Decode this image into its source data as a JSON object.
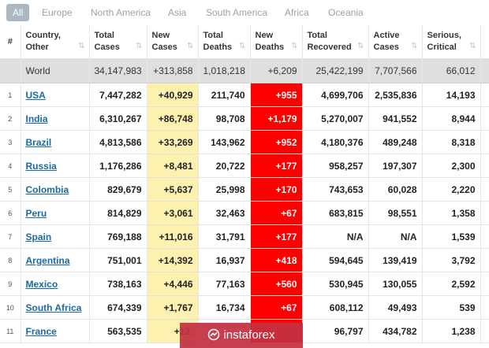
{
  "tabs": [
    "All",
    "Europe",
    "North America",
    "Asia",
    "South America",
    "Africa",
    "Oceania"
  ],
  "header": {
    "rank": "#",
    "country_1": "Country,",
    "country_2": "Other",
    "total_cases_1": "Total",
    "total_cases_2": "Cases",
    "new_cases_1": "New",
    "new_cases_2": "Cases",
    "total_deaths_1": "Total",
    "total_deaths_2": "Deaths",
    "new_deaths_1": "New",
    "new_deaths_2": "Deaths",
    "total_recovered_1": "Total",
    "total_recovered_2": "Recovered",
    "active_cases_1": "Active",
    "active_cases_2": "Cases",
    "serious_1": "Serious,",
    "serious_2": "Critical"
  },
  "world": {
    "country": "World",
    "total_cases": "34,147,983",
    "new_cases": "+313,858",
    "total_deaths": "1,018,218",
    "new_deaths": "+6,209",
    "total_recovered": "25,422,199",
    "active_cases": "7,707,566",
    "serious": "66,012"
  },
  "rows": [
    {
      "rank": "1",
      "country": "USA",
      "total_cases": "7,447,282",
      "new_cases": "+40,929",
      "total_deaths": "211,740",
      "new_deaths": "+955",
      "total_recovered": "4,699,706",
      "active_cases": "2,535,836",
      "serious": "14,193"
    },
    {
      "rank": "2",
      "country": "India",
      "total_cases": "6,310,267",
      "new_cases": "+86,748",
      "total_deaths": "98,708",
      "new_deaths": "+1,179",
      "total_recovered": "5,270,007",
      "active_cases": "941,552",
      "serious": "8,944"
    },
    {
      "rank": "3",
      "country": "Brazil",
      "total_cases": "4,813,586",
      "new_cases": "+33,269",
      "total_deaths": "143,962",
      "new_deaths": "+952",
      "total_recovered": "4,180,376",
      "active_cases": "489,248",
      "serious": "8,318"
    },
    {
      "rank": "4",
      "country": "Russia",
      "total_cases": "1,176,286",
      "new_cases": "+8,481",
      "total_deaths": "20,722",
      "new_deaths": "+177",
      "total_recovered": "958,257",
      "active_cases": "197,307",
      "serious": "2,300"
    },
    {
      "rank": "5",
      "country": "Colombia",
      "total_cases": "829,679",
      "new_cases": "+5,637",
      "total_deaths": "25,998",
      "new_deaths": "+170",
      "total_recovered": "743,653",
      "active_cases": "60,028",
      "serious": "2,220"
    },
    {
      "rank": "6",
      "country": "Peru",
      "total_cases": "814,829",
      "new_cases": "+3,061",
      "total_deaths": "32,463",
      "new_deaths": "+67",
      "total_recovered": "683,815",
      "active_cases": "98,551",
      "serious": "1,358"
    },
    {
      "rank": "7",
      "country": "Spain",
      "total_cases": "769,188",
      "new_cases": "+11,016",
      "total_deaths": "31,791",
      "new_deaths": "+177",
      "total_recovered": "N/A",
      "active_cases": "N/A",
      "serious": "1,539"
    },
    {
      "rank": "8",
      "country": "Argentina",
      "total_cases": "751,001",
      "new_cases": "+14,392",
      "total_deaths": "16,937",
      "new_deaths": "+418",
      "total_recovered": "594,645",
      "active_cases": "139,419",
      "serious": "3,792"
    },
    {
      "rank": "9",
      "country": "Mexico",
      "total_cases": "738,163",
      "new_cases": "+4,446",
      "total_deaths": "77,163",
      "new_deaths": "+560",
      "total_recovered": "530,945",
      "active_cases": "130,055",
      "serious": "2,592"
    },
    {
      "rank": "10",
      "country": "South Africa",
      "total_cases": "674,339",
      "new_cases": "+1,767",
      "total_deaths": "16,734",
      "new_deaths": "+67",
      "total_recovered": "608,112",
      "active_cases": "49,493",
      "serious": "539"
    },
    {
      "rank": "11",
      "country": "France",
      "total_cases": "563,535",
      "new_cases": "+12,",
      "total_deaths": "",
      "new_deaths": "",
      "total_recovered": "96,797",
      "active_cases": "434,782",
      "serious": "1,238"
    }
  ],
  "watermark": {
    "text": "instaforex"
  },
  "colors": {
    "new_cases_bg": "#fdf1b0",
    "new_deaths_bg": "#ff0000",
    "link": "#1b6aa0",
    "world_row_bg": "#dfdfdf",
    "active_tab_bg": "#adb7bf",
    "watermark_bg": "#c33041"
  }
}
